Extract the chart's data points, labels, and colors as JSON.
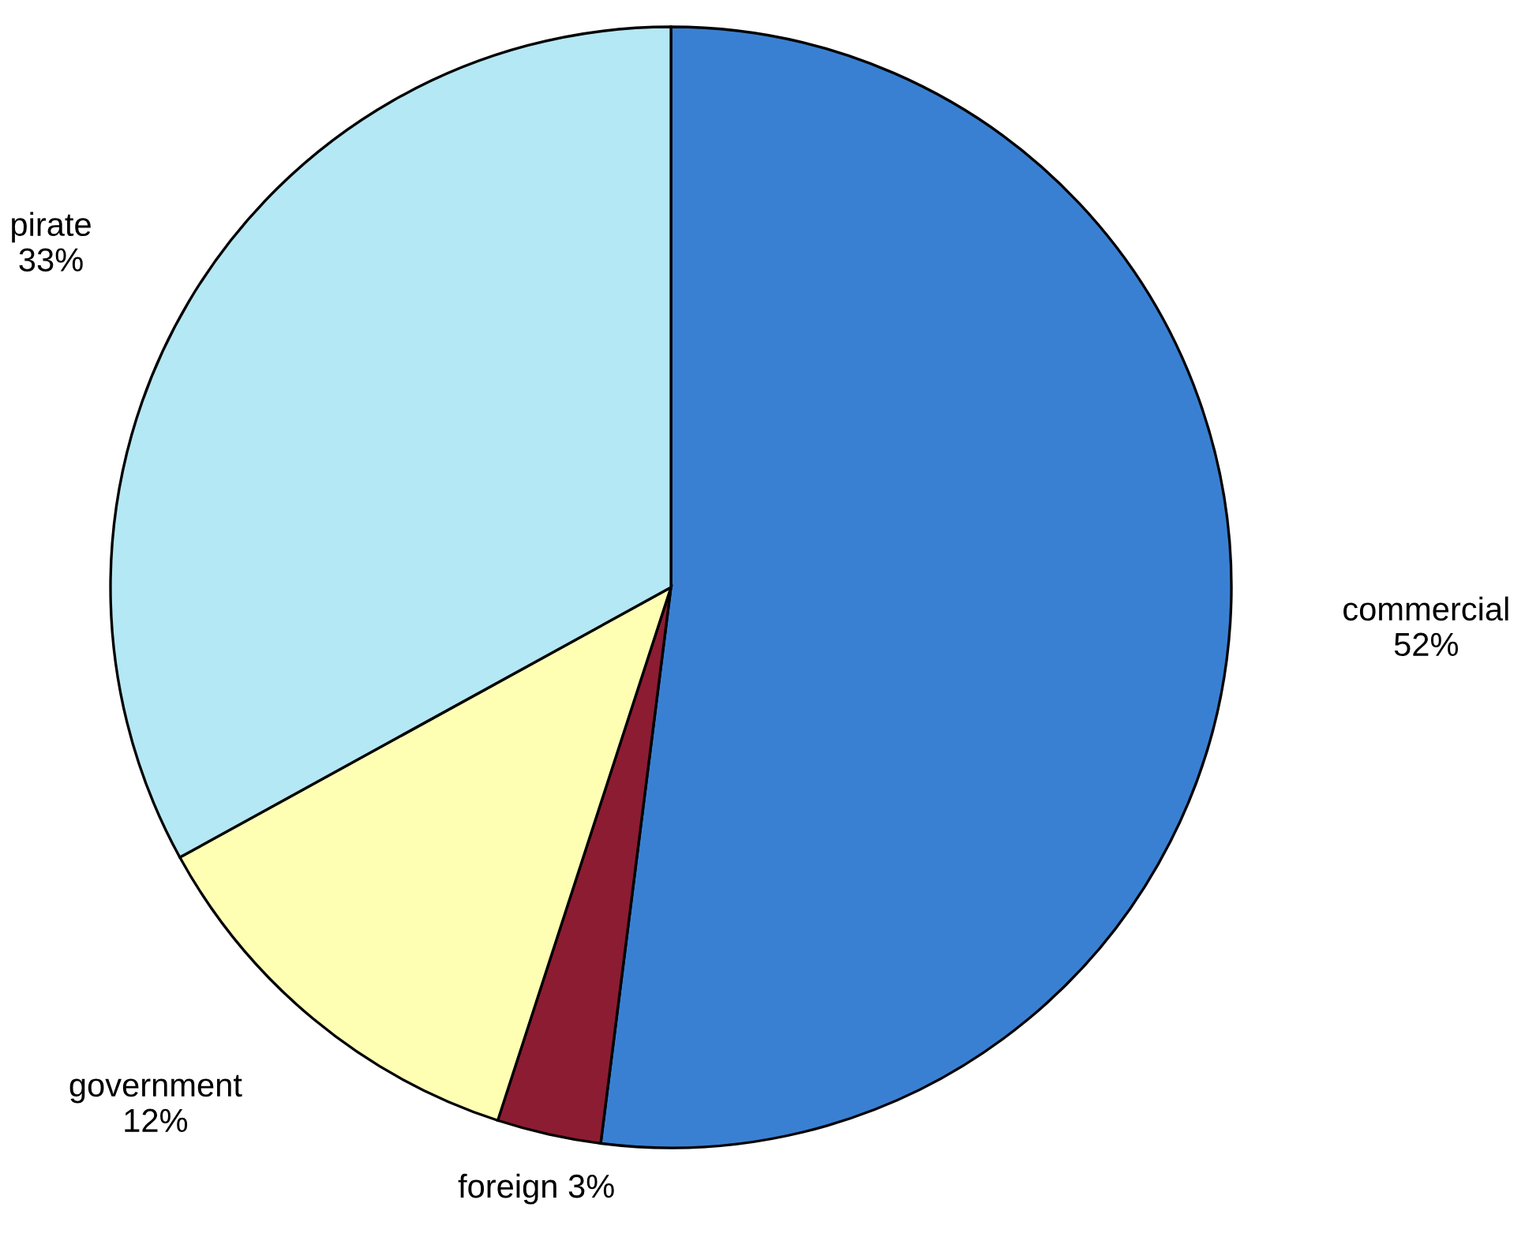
{
  "chart_data": {
    "type": "pie",
    "categories": [
      "commercial",
      "foreign",
      "government",
      "pirate"
    ],
    "values": [
      52,
      3,
      12,
      33
    ],
    "value_labels": [
      "52%",
      "3%",
      "12%",
      "33%"
    ],
    "colors": [
      "#3a80d2",
      "#8c1c32",
      "#ffffb4",
      "#b4e8f4"
    ]
  }
}
